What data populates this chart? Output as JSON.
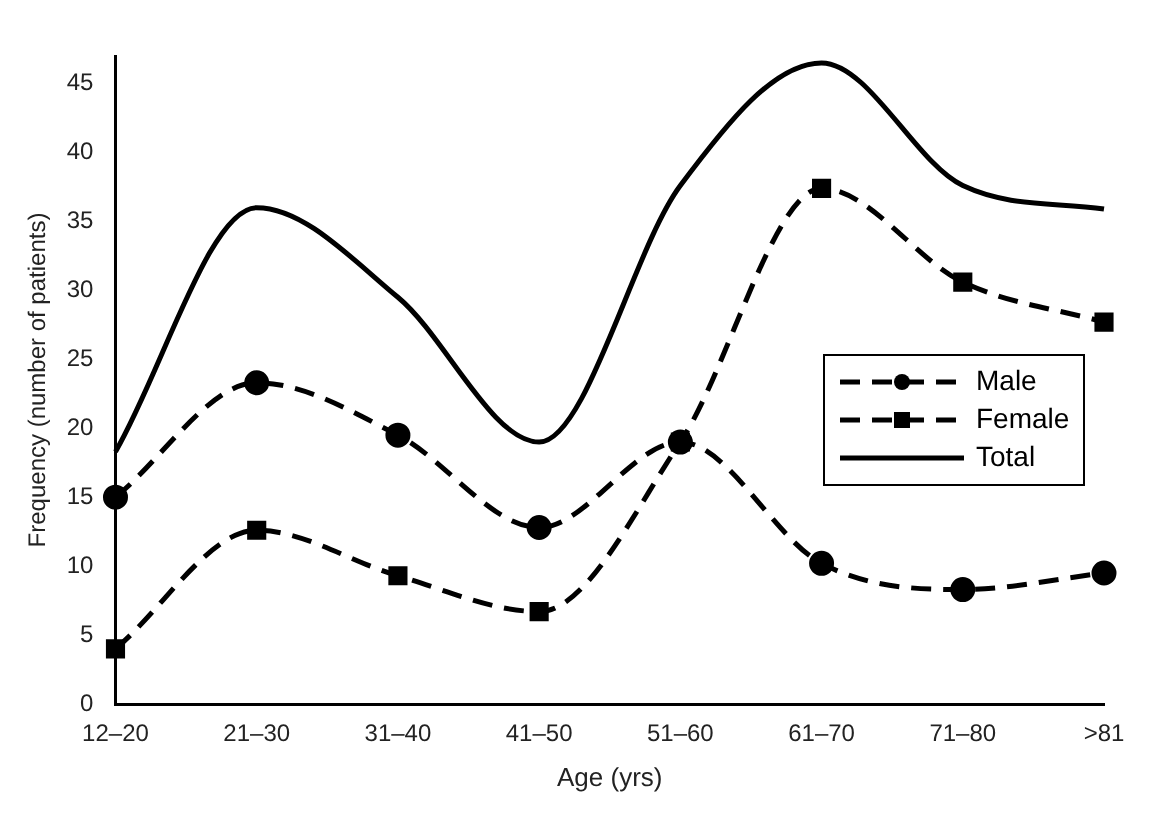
{
  "chart_data": {
    "type": "line",
    "xlabel": "Age (yrs)",
    "ylabel": "Frequency (number of patients)",
    "categories": [
      "12–20",
      "21–30",
      "31–40",
      "41–50",
      "51–60",
      "61–70",
      "71–80",
      ">81"
    ],
    "series": [
      {
        "name": "Male",
        "color": "#000000",
        "marker": "circle",
        "line_style": "dashed",
        "values": [
          15,
          23.3,
          19.5,
          12.8,
          19,
          10.2,
          8.3,
          9.5
        ]
      },
      {
        "name": "Female",
        "color": "#000000",
        "marker": "square",
        "line_style": "dashed",
        "values": [
          4,
          12.6,
          9.3,
          6.7,
          19,
          37.4,
          30.6,
          27.7
        ]
      },
      {
        "name": "Total",
        "color": "#000000",
        "marker": "none",
        "line_style": "solid",
        "values": [
          18.3,
          36,
          29.5,
          19,
          37.6,
          46.5,
          37.6,
          35.9
        ]
      }
    ],
    "ylim": [
      0,
      47
    ],
    "yticks": [
      0,
      5,
      10,
      15,
      20,
      25,
      30,
      35,
      40,
      45
    ],
    "grid": false,
    "legend": "right"
  }
}
